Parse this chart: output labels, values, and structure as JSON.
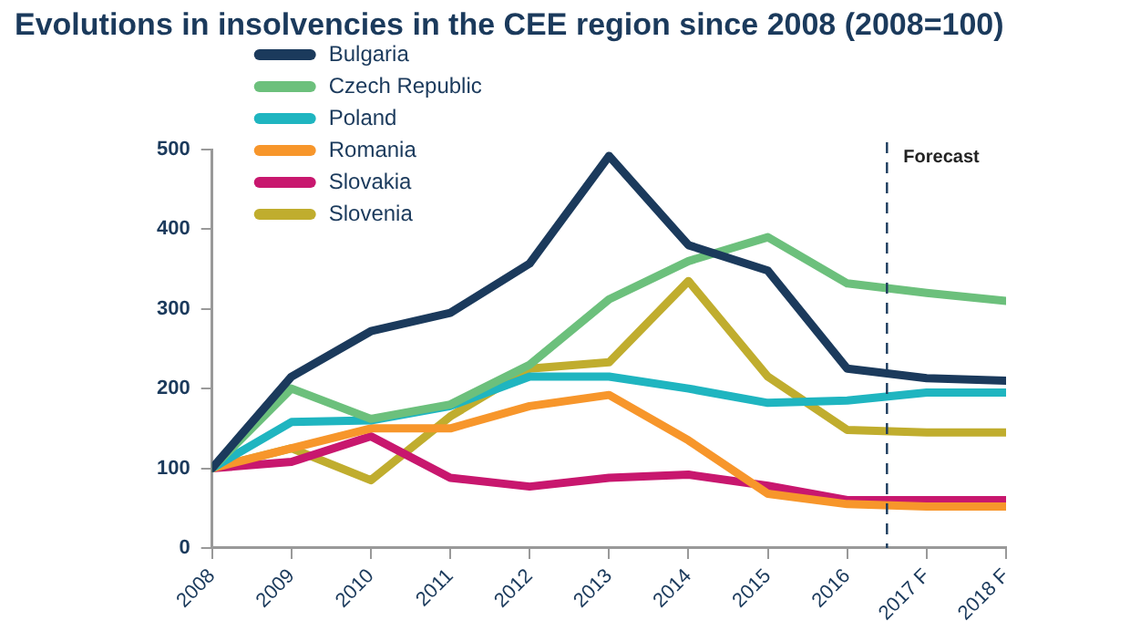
{
  "chart_data": {
    "type": "line",
    "title": "Evolutions in insolvencies in the CEE region since 2008 (2008=100)",
    "x": [
      2008,
      2009,
      2010,
      2011,
      2012,
      2013,
      2014,
      2015,
      2016,
      2017,
      2018
    ],
    "xlim": [
      2008,
      2018
    ],
    "xticks": [
      2008,
      2009,
      2010,
      2011,
      2012,
      2013,
      2014,
      2015,
      2016,
      {
        "value": 2017,
        "label": "2017 F"
      },
      {
        "value": 2018,
        "label": "2018 F"
      }
    ],
    "ylim": [
      0,
      500
    ],
    "yticks": [
      0,
      100,
      200,
      300,
      400,
      500
    ],
    "grid": false,
    "legend": "top left",
    "marker": "none",
    "line_style": "solid",
    "ref_lines": [
      {
        "axis": "x",
        "value": 2016.5,
        "label": "Forecast",
        "line_style": "dashed",
        "color": "#1b3a5c"
      }
    ],
    "series": [
      {
        "name": "Bulgaria",
        "color": "#1b3a5c",
        "values": [
          100,
          215,
          272,
          295,
          357,
          492,
          380,
          348,
          225,
          213,
          210
        ]
      },
      {
        "name": "Czech Republic",
        "color": "#6cc07c",
        "values": [
          100,
          200,
          162,
          180,
          230,
          312,
          360,
          390,
          332,
          320,
          310
        ]
      },
      {
        "name": "Poland",
        "color": "#1fb5c0",
        "values": [
          100,
          158,
          160,
          178,
          215,
          215,
          200,
          182,
          185,
          195,
          195
        ]
      },
      {
        "name": "Romania",
        "color": "#f7962b",
        "values": [
          100,
          125,
          150,
          150,
          178,
          192,
          135,
          68,
          55,
          52,
          52
        ]
      },
      {
        "name": "Slovakia",
        "color": "#c8176e",
        "values": [
          100,
          108,
          140,
          88,
          77,
          88,
          92,
          78,
          60,
          60,
          60
        ]
      },
      {
        "name": "Slovenia",
        "color": "#c0ad2e",
        "values": [
          100,
          125,
          85,
          165,
          225,
          233,
          335,
          215,
          148,
          145,
          145
        ]
      }
    ]
  }
}
